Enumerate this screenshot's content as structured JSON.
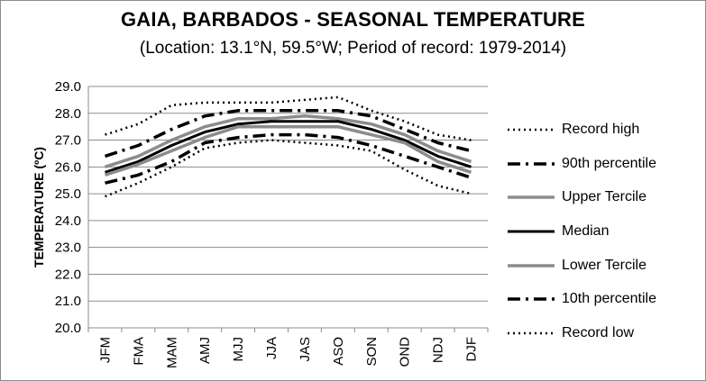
{
  "chart_data": {
    "type": "line",
    "title": "GAIA, BARBADOS - SEASONAL TEMPERATURE",
    "subtitle": "(Location: 13.1°N, 59.5°W; Period of record: 1979-2014)",
    "ylabel": "TEMPERATURE (ºC)",
    "xlabel": "",
    "ylim": [
      20.0,
      29.0
    ],
    "yticks": [
      "20.0",
      "21.0",
      "22.0",
      "23.0",
      "24.0",
      "25.0",
      "26.0",
      "27.0",
      "28.0",
      "29.0"
    ],
    "categories": [
      "JFM",
      "FMA",
      "MAM",
      "AMJ",
      "MJJ",
      "JJA",
      "JAS",
      "ASO",
      "SON",
      "OND",
      "NDJ",
      "DJF"
    ],
    "grid": true,
    "legend_position": "right",
    "series": [
      {
        "name": "Record high",
        "color": "#000000",
        "style": "dotted",
        "width": 2.5,
        "values": [
          27.2,
          27.6,
          28.3,
          28.4,
          28.4,
          28.4,
          28.5,
          28.6,
          28.1,
          27.7,
          27.2,
          27.0
        ]
      },
      {
        "name": "90th percentile",
        "color": "#000000",
        "style": "dashdot",
        "width": 3.5,
        "values": [
          26.4,
          26.8,
          27.4,
          27.9,
          28.1,
          28.1,
          28.1,
          28.1,
          27.9,
          27.4,
          26.9,
          26.6
        ]
      },
      {
        "name": "Upper Tercile",
        "color": "#8c8c8c",
        "style": "solid",
        "width": 3.5,
        "values": [
          26.0,
          26.4,
          27.0,
          27.5,
          27.8,
          27.8,
          27.9,
          27.8,
          27.6,
          27.2,
          26.6,
          26.2
        ]
      },
      {
        "name": "Median",
        "color": "#000000",
        "style": "solid",
        "width": 3,
        "values": [
          25.8,
          26.2,
          26.8,
          27.3,
          27.6,
          27.7,
          27.7,
          27.7,
          27.4,
          27.0,
          26.4,
          26.0
        ]
      },
      {
        "name": "Lower Tercile",
        "color": "#8c8c8c",
        "style": "solid",
        "width": 3.5,
        "values": [
          25.7,
          26.1,
          26.6,
          27.1,
          27.5,
          27.5,
          27.5,
          27.5,
          27.2,
          26.9,
          26.2,
          25.8
        ]
      },
      {
        "name": "10th percentile",
        "color": "#000000",
        "style": "dashdot",
        "width": 3.5,
        "values": [
          25.4,
          25.7,
          26.2,
          26.9,
          27.1,
          27.2,
          27.2,
          27.1,
          26.8,
          26.4,
          26.0,
          25.6
        ]
      },
      {
        "name": "Record low",
        "color": "#000000",
        "style": "dotted",
        "width": 2.5,
        "values": [
          24.9,
          25.4,
          26.0,
          26.7,
          26.9,
          27.0,
          26.9,
          26.8,
          26.6,
          25.9,
          25.3,
          25.0
        ]
      }
    ]
  }
}
